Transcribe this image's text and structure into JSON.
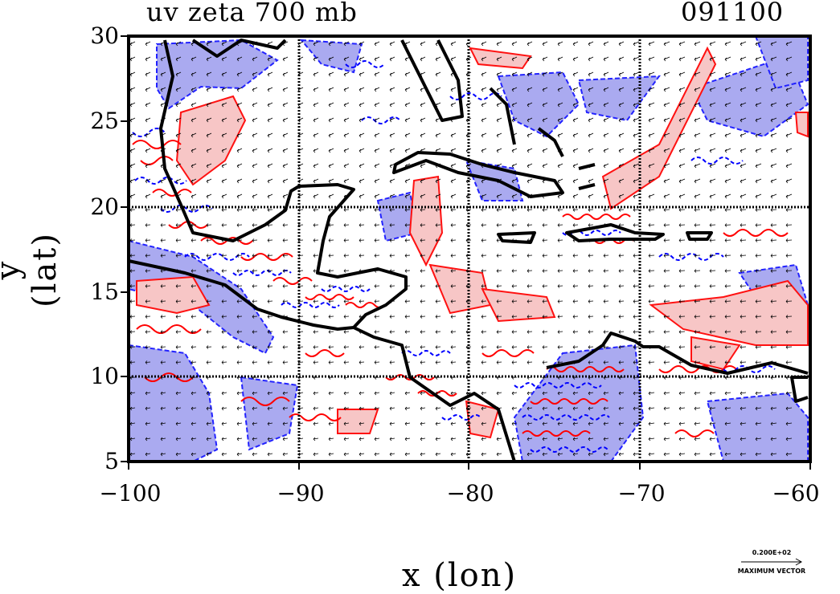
{
  "title_left": "uv zeta 700 mb",
  "title_right": "091100",
  "xaxis": {
    "label": "x (lon)",
    "range": [
      -100,
      -60
    ],
    "ticks": [
      "−100",
      "−90",
      "−80",
      "−70",
      "−60"
    ]
  },
  "yaxis": {
    "label": "y (lat)",
    "range": [
      5,
      30
    ],
    "ticks": [
      "30",
      "25",
      "20",
      "15",
      "10",
      "5"
    ]
  },
  "reference_vector": {
    "value": "0.200E+02",
    "label": "MAXIMUM VECTOR"
  },
  "colors": {
    "positive_vorticity": "#ff0000",
    "positive_fill": "#f7c6c6",
    "negative_vorticity": "#0000ff",
    "negative_fill": "#aaaaf0",
    "coastline": "#000000"
  },
  "gridlines": [
    -90,
    -80,
    -70,
    10,
    20
  ]
}
